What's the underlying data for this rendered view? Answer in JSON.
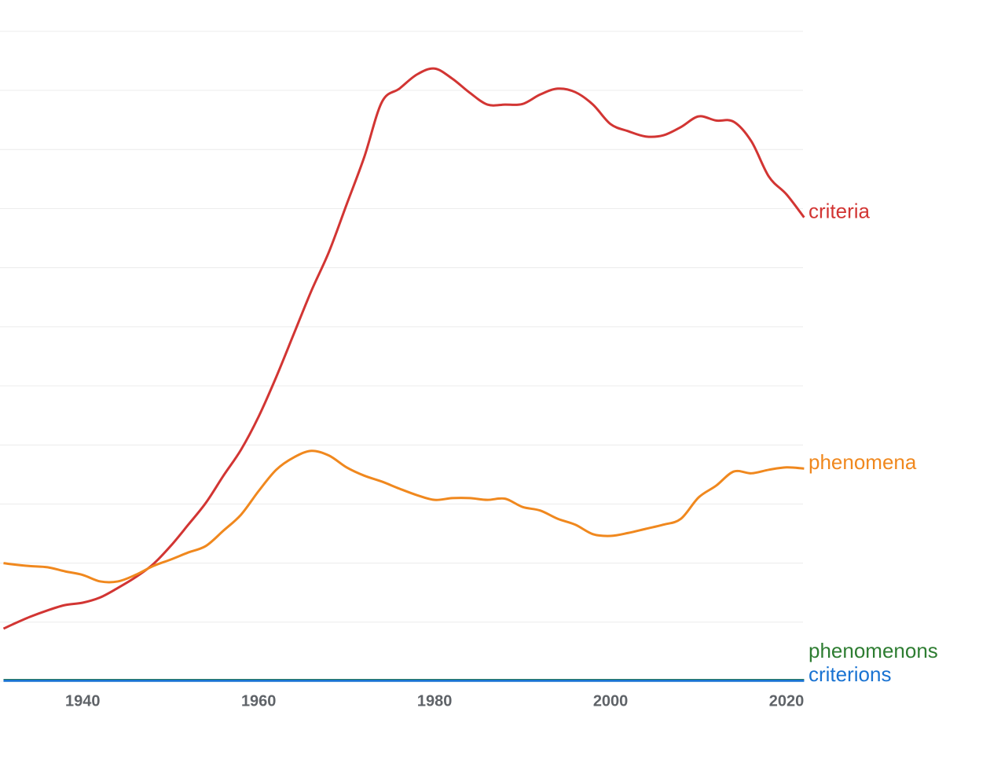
{
  "chart_data": {
    "type": "line",
    "x": [
      1931,
      1932,
      1934,
      1936,
      1938,
      1940,
      1942,
      1944,
      1946,
      1948,
      1950,
      1952,
      1954,
      1956,
      1958,
      1960,
      1962,
      1964,
      1966,
      1968,
      1970,
      1972,
      1974,
      1976,
      1978,
      1980,
      1982,
      1984,
      1986,
      1988,
      1990,
      1992,
      1994,
      1996,
      1998,
      2000,
      2002,
      2004,
      2006,
      2008,
      2010,
      2012,
      2014,
      2016,
      2018,
      2020,
      2022
    ],
    "series": [
      {
        "name": "criteria",
        "color": "#d23533",
        "values": [
          0.89,
          0.96,
          1.09,
          1.2,
          1.29,
          1.33,
          1.42,
          1.58,
          1.76,
          1.98,
          2.29,
          2.65,
          3.02,
          3.48,
          3.92,
          4.48,
          5.15,
          5.88,
          6.61,
          7.27,
          8.07,
          8.87,
          9.8,
          10.03,
          10.27,
          10.37,
          10.2,
          9.96,
          9.76,
          9.76,
          9.77,
          9.93,
          10.03,
          9.97,
          9.76,
          9.43,
          9.31,
          9.22,
          9.24,
          9.38,
          9.56,
          9.49,
          9.47,
          9.14,
          8.54,
          8.24,
          7.85
        ]
      },
      {
        "name": "phenomena",
        "color": "#f0881e",
        "values": [
          2.0,
          1.98,
          1.95,
          1.93,
          1.86,
          1.8,
          1.69,
          1.69,
          1.8,
          1.95,
          2.06,
          2.18,
          2.29,
          2.55,
          2.82,
          3.22,
          3.58,
          3.79,
          3.9,
          3.82,
          3.62,
          3.48,
          3.38,
          3.26,
          3.15,
          3.07,
          3.1,
          3.1,
          3.07,
          3.09,
          2.95,
          2.89,
          2.75,
          2.65,
          2.49,
          2.46,
          2.51,
          2.58,
          2.65,
          2.75,
          3.11,
          3.31,
          3.55,
          3.52,
          3.58,
          3.62,
          3.6
        ]
      },
      {
        "name": "phenomenons",
        "color": "#2e7d32",
        "values": [
          0.02,
          0.02,
          0.02,
          0.02,
          0.02,
          0.02,
          0.02,
          0.02,
          0.02,
          0.02,
          0.02,
          0.02,
          0.02,
          0.02,
          0.02,
          0.02,
          0.02,
          0.02,
          0.02,
          0.02,
          0.02,
          0.02,
          0.02,
          0.02,
          0.02,
          0.02,
          0.02,
          0.02,
          0.02,
          0.02,
          0.02,
          0.02,
          0.02,
          0.02,
          0.02,
          0.02,
          0.02,
          0.02,
          0.02,
          0.02,
          0.02,
          0.02,
          0.02,
          0.02,
          0.02,
          0.02,
          0.02
        ]
      },
      {
        "name": "criterions",
        "color": "#1a73d2",
        "values": [
          0.01,
          0.01,
          0.01,
          0.01,
          0.01,
          0.01,
          0.01,
          0.01,
          0.01,
          0.01,
          0.01,
          0.01,
          0.01,
          0.01,
          0.01,
          0.01,
          0.01,
          0.01,
          0.01,
          0.01,
          0.01,
          0.01,
          0.01,
          0.01,
          0.01,
          0.01,
          0.01,
          0.01,
          0.01,
          0.01,
          0.01,
          0.01,
          0.01,
          0.01,
          0.01,
          0.01,
          0.01,
          0.01,
          0.01,
          0.01,
          0.01,
          0.01,
          0.01,
          0.01,
          0.01,
          0.01,
          0.01
        ]
      }
    ],
    "xlim": [
      1930.6,
      2022
    ],
    "xticks": [
      1940,
      1960,
      1980,
      2000,
      2020
    ],
    "ylim": [
      0,
      11.53
    ],
    "yticks": [
      0,
      1,
      2,
      3,
      4,
      5,
      6,
      7,
      8,
      9,
      10,
      11
    ],
    "grid": true
  }
}
